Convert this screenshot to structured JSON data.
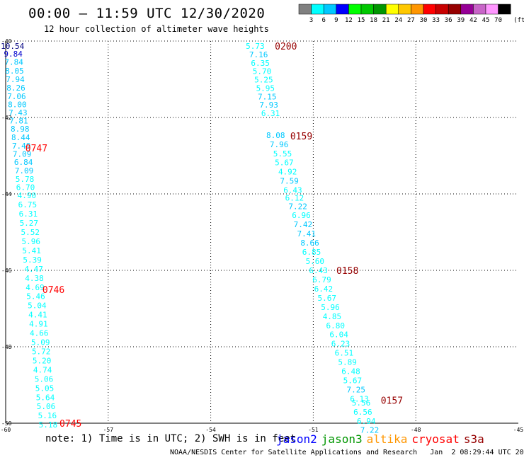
{
  "header": {
    "title": "00:00 – 11:59 UTC 12/30/2020",
    "subtitle": "12 hour collection of altimeter wave heights"
  },
  "legend": {
    "labels": [
      "3",
      "6",
      "9",
      "12",
      "15",
      "18",
      "21",
      "24",
      "27",
      "30",
      "33",
      "36",
      "39",
      "42",
      "45",
      "70"
    ],
    "unit": "(ft)",
    "colors": [
      "#808080",
      "#00ffff",
      "#00c8ff",
      "#0000ff",
      "#00ff00",
      "#00c800",
      "#009600",
      "#ffff00",
      "#ffc800",
      "#ff9600",
      "#ff0000",
      "#c80000",
      "#960000",
      "#960096",
      "#c864c8",
      "#ff96ff",
      "#000000"
    ]
  },
  "footer": {
    "note": "note: 1) Time is in UTC; 2) SWH is in feet",
    "credit": "NOAA/NESDIS Center for Satellite Applications and Research   Jan  2 08:29:44 UTC 2021",
    "satellites": [
      {
        "name": "jason2",
        "color": "#0000ff"
      },
      {
        "name": "jason3",
        "color": "#009600"
      },
      {
        "name": "altika",
        "color": "#ff9600"
      },
      {
        "name": "cryosat",
        "color": "#ff0000"
      },
      {
        "name": "s3a",
        "color": "#960000"
      }
    ]
  },
  "chart_data": {
    "type": "scatter",
    "xlim": [
      -60,
      -45
    ],
    "ylim": [
      -50,
      -40
    ],
    "x_ticks": [
      -60,
      -57,
      -54,
      -51,
      -48,
      -45
    ],
    "x_tick_labels": [
      "-60",
      "-57",
      "-54",
      "-51",
      "-48",
      "-45"
    ],
    "y_ticks": [
      -40,
      -42,
      -44,
      -46,
      -48,
      -50
    ],
    "y_tick_labels": [
      "-40",
      "-42",
      "-44",
      "-46",
      "-48",
      "-50"
    ],
    "grid": true,
    "series": [
      {
        "name": "cryosat",
        "color": "#ff0000",
        "points": [
          {
            "x": -59.8,
            "y": -40.13,
            "v": "10.54",
            "c": "#000080"
          },
          {
            "x": -59.78,
            "y": -40.33,
            "v": "9.84",
            "c": "#0000cd"
          },
          {
            "x": -59.76,
            "y": -40.55,
            "v": "7.84",
            "c": "#00c8ff"
          },
          {
            "x": -59.74,
            "y": -40.78,
            "v": "8.05",
            "c": "#00c8ff"
          },
          {
            "x": -59.72,
            "y": -41.0,
            "v": "7.94",
            "c": "#00c8ff"
          },
          {
            "x": -59.7,
            "y": -41.22,
            "v": "8.26",
            "c": "#00c8ff"
          },
          {
            "x": -59.68,
            "y": -41.44,
            "v": "7.06",
            "c": "#00c8ff"
          },
          {
            "x": -59.66,
            "y": -41.66,
            "v": "8.00",
            "c": "#00c8ff"
          },
          {
            "x": -59.64,
            "y": -41.87,
            "v": "7.43",
            "c": "#00c8ff"
          },
          {
            "x": -59.62,
            "y": -42.08,
            "v": "7.81",
            "c": "#00c8ff"
          },
          {
            "x": -59.58,
            "y": -42.3,
            "v": "8.98",
            "c": "#00c8ff"
          },
          {
            "x": -59.56,
            "y": -42.52,
            "v": "8.44",
            "c": "#00c8ff"
          },
          {
            "x": -59.54,
            "y": -42.74,
            "v": "7.49",
            "c": "#00c8ff"
          },
          {
            "x": -59.52,
            "y": -42.95,
            "v": "7.09",
            "c": "#00c8ff"
          },
          {
            "x": -59.48,
            "y": -43.17,
            "v": "6.84",
            "c": "#00c8ff"
          },
          {
            "x": -59.46,
            "y": -43.39,
            "v": "7.09",
            "c": "#00c8ff"
          },
          {
            "x": -59.44,
            "y": -43.61,
            "v": "5.78",
            "c": "#00ffff"
          },
          {
            "x": -59.42,
            "y": -43.82,
            "v": "6.70",
            "c": "#00ffff"
          },
          {
            "x": -59.38,
            "y": -44.04,
            "v": "4.90",
            "c": "#00ffff"
          },
          {
            "x": -59.36,
            "y": -44.28,
            "v": "6.75",
            "c": "#00ffff"
          },
          {
            "x": -59.34,
            "y": -44.52,
            "v": "6.31",
            "c": "#00ffff"
          },
          {
            "x": -59.32,
            "y": -44.76,
            "v": "5.27",
            "c": "#00ffff"
          },
          {
            "x": -59.28,
            "y": -45.0,
            "v": "5.52",
            "c": "#00ffff"
          },
          {
            "x": -59.26,
            "y": -45.24,
            "v": "5.96",
            "c": "#00ffff"
          },
          {
            "x": -59.24,
            "y": -45.48,
            "v": "5.41",
            "c": "#00ffff"
          },
          {
            "x": -59.22,
            "y": -45.72,
            "v": "5.39",
            "c": "#00ffff"
          },
          {
            "x": -59.18,
            "y": -45.96,
            "v": "4.47",
            "c": "#00ffff"
          },
          {
            "x": -59.16,
            "y": -46.2,
            "v": "4.38",
            "c": "#00ffff"
          },
          {
            "x": -59.14,
            "y": -46.44,
            "v": "4.69",
            "c": "#00ffff"
          },
          {
            "x": -59.12,
            "y": -46.68,
            "v": "5.46",
            "c": "#00ffff"
          },
          {
            "x": -59.08,
            "y": -46.92,
            "v": "5.04",
            "c": "#00ffff"
          },
          {
            "x": -59.06,
            "y": -47.16,
            "v": "4.41",
            "c": "#00ffff"
          },
          {
            "x": -59.04,
            "y": -47.4,
            "v": "4.91",
            "c": "#00ffff"
          },
          {
            "x": -59.02,
            "y": -47.64,
            "v": "4.66",
            "c": "#00ffff"
          },
          {
            "x": -58.98,
            "y": -47.88,
            "v": "5.09",
            "c": "#00ffff"
          },
          {
            "x": -58.96,
            "y": -48.12,
            "v": "5.72",
            "c": "#00ffff"
          },
          {
            "x": -58.94,
            "y": -48.36,
            "v": "5.20",
            "c": "#00ffff"
          },
          {
            "x": -58.92,
            "y": -48.6,
            "v": "4.74",
            "c": "#00ffff"
          },
          {
            "x": -58.88,
            "y": -48.84,
            "v": "5.06",
            "c": "#00ffff"
          },
          {
            "x": -58.86,
            "y": -49.08,
            "v": "5.05",
            "c": "#00ffff"
          },
          {
            "x": -58.84,
            "y": -49.32,
            "v": "5.64",
            "c": "#00ffff"
          },
          {
            "x": -58.82,
            "y": -49.56,
            "v": "5.06",
            "c": "#00ffff"
          },
          {
            "x": -58.78,
            "y": -49.8,
            "v": "5.16",
            "c": "#00ffff"
          },
          {
            "x": -58.76,
            "y": -50.04,
            "v": "5.18",
            "c": "#00ffff"
          }
        ],
        "time_labels": [
          {
            "x": -59.1,
            "y": -42.8,
            "t": "0747"
          },
          {
            "x": -58.6,
            "y": -46.5,
            "t": "0746"
          },
          {
            "x": -58.1,
            "y": -50.0,
            "t": "0745"
          }
        ]
      },
      {
        "name": "s3a",
        "color": "#960000",
        "points": [
          {
            "x": -52.7,
            "y": -40.13,
            "v": "5.73",
            "c": "#00ffff"
          },
          {
            "x": -52.6,
            "y": -40.35,
            "v": "7.16",
            "c": "#00c8ff"
          },
          {
            "x": -52.55,
            "y": -40.57,
            "v": "6.35",
            "c": "#00ffff"
          },
          {
            "x": -52.5,
            "y": -40.79,
            "v": "5.70",
            "c": "#00ffff"
          },
          {
            "x": -52.45,
            "y": -41.01,
            "v": "5.25",
            "c": "#00ffff"
          },
          {
            "x": -52.4,
            "y": -41.23,
            "v": "5.95",
            "c": "#00ffff"
          },
          {
            "x": -52.35,
            "y": -41.45,
            "v": "7.15",
            "c": "#00c8ff"
          },
          {
            "x": -52.3,
            "y": -41.67,
            "v": "7.93",
            "c": "#00c8ff"
          },
          {
            "x": -52.25,
            "y": -41.89,
            "v": "6.31",
            "c": "#00ffff"
          },
          {
            "x": -52.1,
            "y": -42.46,
            "v": "8.08",
            "c": "#00c8ff"
          },
          {
            "x": -52.0,
            "y": -42.7,
            "v": "7.96",
            "c": "#00c8ff"
          },
          {
            "x": -51.9,
            "y": -42.94,
            "v": "5.55",
            "c": "#00ffff"
          },
          {
            "x": -51.85,
            "y": -43.18,
            "v": "5.67",
            "c": "#00ffff"
          },
          {
            "x": -51.75,
            "y": -43.42,
            "v": "4.92",
            "c": "#00ffff"
          },
          {
            "x": -51.7,
            "y": -43.66,
            "v": "7.59",
            "c": "#00c8ff"
          },
          {
            "x": -51.6,
            "y": -43.9,
            "v": "6.43",
            "c": "#00ffff"
          },
          {
            "x": -51.55,
            "y": -44.1,
            "v": "6.12",
            "c": "#00ffff"
          },
          {
            "x": -51.45,
            "y": -44.32,
            "v": "7.22",
            "c": "#00c8ff"
          },
          {
            "x": -51.35,
            "y": -44.56,
            "v": "6.96",
            "c": "#00ffff"
          },
          {
            "x": -51.3,
            "y": -44.8,
            "v": "7.42",
            "c": "#00c8ff"
          },
          {
            "x": -51.2,
            "y": -45.04,
            "v": "7.41",
            "c": "#00c8ff"
          },
          {
            "x": -51.1,
            "y": -45.28,
            "v": "8.66",
            "c": "#00c8ff"
          },
          {
            "x": -51.05,
            "y": -45.52,
            "v": "6.85",
            "c": "#00ffff"
          },
          {
            "x": -50.95,
            "y": -45.76,
            "v": "5.60",
            "c": "#00ffff"
          },
          {
            "x": -50.85,
            "y": -46.0,
            "v": "6.43",
            "c": "#00ffff"
          },
          {
            "x": -50.75,
            "y": -46.24,
            "v": "6.79",
            "c": "#00ffff"
          },
          {
            "x": -50.7,
            "y": -46.48,
            "v": "6.42",
            "c": "#00ffff"
          },
          {
            "x": -50.6,
            "y": -46.72,
            "v": "5.67",
            "c": "#00ffff"
          },
          {
            "x": -50.5,
            "y": -46.96,
            "v": "5.96",
            "c": "#00ffff"
          },
          {
            "x": -50.45,
            "y": -47.2,
            "v": "4.85",
            "c": "#00ffff"
          },
          {
            "x": -50.35,
            "y": -47.44,
            "v": "6.80",
            "c": "#00ffff"
          },
          {
            "x": -50.25,
            "y": -47.68,
            "v": "6.04",
            "c": "#00ffff"
          },
          {
            "x": -50.2,
            "y": -47.92,
            "v": "6.23",
            "c": "#00ffff"
          },
          {
            "x": -50.1,
            "y": -48.16,
            "v": "6.51",
            "c": "#00ffff"
          },
          {
            "x": -50.0,
            "y": -48.4,
            "v": "5.89",
            "c": "#00ffff"
          },
          {
            "x": -49.9,
            "y": -48.64,
            "v": "6.48",
            "c": "#00ffff"
          },
          {
            "x": -49.85,
            "y": -48.88,
            "v": "5.67",
            "c": "#00ffff"
          },
          {
            "x": -49.75,
            "y": -49.12,
            "v": "7.25",
            "c": "#00c8ff"
          },
          {
            "x": -49.65,
            "y": -49.36,
            "v": "6.13",
            "c": "#00ffff"
          },
          {
            "x": -49.6,
            "y": -49.46,
            "v": "5.56",
            "c": "#00ffff"
          },
          {
            "x": -49.55,
            "y": -49.7,
            "v": "6.56",
            "c": "#00ffff"
          },
          {
            "x": -49.45,
            "y": -49.94,
            "v": "6.94",
            "c": "#00ffff"
          },
          {
            "x": -49.35,
            "y": -50.18,
            "v": "7.22",
            "c": "#00c8ff"
          }
        ],
        "time_labels": [
          {
            "x": -51.8,
            "y": -40.13,
            "t": "0200"
          },
          {
            "x": -51.35,
            "y": -42.48,
            "t": "0159"
          },
          {
            "x": -50.0,
            "y": -46.0,
            "t": "0158"
          },
          {
            "x": -48.7,
            "y": -49.4,
            "t": "0157"
          }
        ]
      }
    ]
  }
}
